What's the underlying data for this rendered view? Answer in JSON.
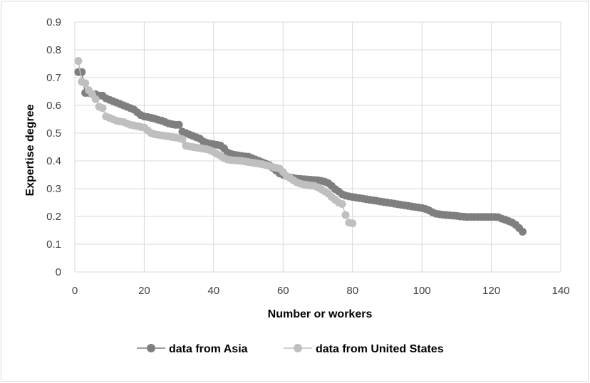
{
  "chart_data": {
    "type": "scatter",
    "xlabel": "Number or workers",
    "ylabel": "Expertise degree",
    "xlim": [
      0,
      140
    ],
    "ylim": [
      0,
      0.9
    ],
    "x_ticks": [
      "0",
      "20",
      "40",
      "60",
      "80",
      "100",
      "120",
      "140"
    ],
    "y_ticks": [
      "0",
      "0.1",
      "0.2",
      "0.3",
      "0.4",
      "0.5",
      "0.6",
      "0.7",
      "0.8",
      "0.9"
    ],
    "grid": true,
    "legend_position": "bottom",
    "series": [
      {
        "name": "data from Asia",
        "color": "#7f7f7f",
        "points": [
          [
            1,
            0.72
          ],
          [
            2,
            0.72
          ],
          [
            3,
            0.645
          ],
          [
            4,
            0.645
          ],
          [
            5,
            0.64
          ],
          [
            6,
            0.64
          ],
          [
            7,
            0.635
          ],
          [
            8,
            0.635
          ],
          [
            9,
            0.625
          ],
          [
            10,
            0.62
          ],
          [
            11,
            0.615
          ],
          [
            12,
            0.61
          ],
          [
            13,
            0.605
          ],
          [
            14,
            0.6
          ],
          [
            15,
            0.595
          ],
          [
            16,
            0.59
          ],
          [
            17,
            0.585
          ],
          [
            18,
            0.575
          ],
          [
            19,
            0.565
          ],
          [
            20,
            0.56
          ],
          [
            21,
            0.558
          ],
          [
            22,
            0.555
          ],
          [
            23,
            0.552
          ],
          [
            24,
            0.548
          ],
          [
            25,
            0.545
          ],
          [
            26,
            0.54
          ],
          [
            27,
            0.535
          ],
          [
            28,
            0.532
          ],
          [
            29,
            0.53
          ],
          [
            30,
            0.53
          ],
          [
            31,
            0.505
          ],
          [
            32,
            0.5
          ],
          [
            33,
            0.495
          ],
          [
            34,
            0.49
          ],
          [
            35,
            0.485
          ],
          [
            36,
            0.48
          ],
          [
            37,
            0.47
          ],
          [
            38,
            0.465
          ],
          [
            39,
            0.462
          ],
          [
            40,
            0.46
          ],
          [
            41,
            0.458
          ],
          [
            42,
            0.455
          ],
          [
            43,
            0.445
          ],
          [
            44,
            0.43
          ],
          [
            45,
            0.425
          ],
          [
            46,
            0.422
          ],
          [
            47,
            0.42
          ],
          [
            48,
            0.418
          ],
          [
            49,
            0.416
          ],
          [
            50,
            0.415
          ],
          [
            51,
            0.41
          ],
          [
            52,
            0.405
          ],
          [
            53,
            0.4
          ],
          [
            54,
            0.395
          ],
          [
            55,
            0.39
          ],
          [
            56,
            0.385
          ],
          [
            57,
            0.375
          ],
          [
            58,
            0.365
          ],
          [
            59,
            0.355
          ],
          [
            60,
            0.35
          ],
          [
            61,
            0.345
          ],
          [
            62,
            0.34
          ],
          [
            63,
            0.338
          ],
          [
            64,
            0.336
          ],
          [
            65,
            0.335
          ],
          [
            66,
            0.334
          ],
          [
            67,
            0.333
          ],
          [
            68,
            0.332
          ],
          [
            69,
            0.331
          ],
          [
            70,
            0.33
          ],
          [
            71,
            0.328
          ],
          [
            72,
            0.325
          ],
          [
            73,
            0.32
          ],
          [
            74,
            0.31
          ],
          [
            75,
            0.298
          ],
          [
            76,
            0.29
          ],
          [
            77,
            0.28
          ],
          [
            78,
            0.275
          ],
          [
            79,
            0.272
          ],
          [
            80,
            0.27
          ],
          [
            81,
            0.268
          ],
          [
            82,
            0.266
          ],
          [
            83,
            0.264
          ],
          [
            84,
            0.262
          ],
          [
            85,
            0.26
          ],
          [
            86,
            0.258
          ],
          [
            87,
            0.256
          ],
          [
            88,
            0.254
          ],
          [
            89,
            0.252
          ],
          [
            90,
            0.25
          ],
          [
            91,
            0.248
          ],
          [
            92,
            0.246
          ],
          [
            93,
            0.244
          ],
          [
            94,
            0.242
          ],
          [
            95,
            0.24
          ],
          [
            96,
            0.238
          ],
          [
            97,
            0.236
          ],
          [
            98,
            0.234
          ],
          [
            99,
            0.232
          ],
          [
            100,
            0.23
          ],
          [
            101,
            0.227
          ],
          [
            102,
            0.222
          ],
          [
            103,
            0.215
          ],
          [
            104,
            0.21
          ],
          [
            105,
            0.208
          ],
          [
            106,
            0.206
          ],
          [
            107,
            0.205
          ],
          [
            108,
            0.204
          ],
          [
            109,
            0.203
          ],
          [
            110,
            0.202
          ],
          [
            111,
            0.2
          ],
          [
            112,
            0.199
          ],
          [
            113,
            0.198
          ],
          [
            114,
            0.198
          ],
          [
            115,
            0.198
          ],
          [
            116,
            0.198
          ],
          [
            117,
            0.198
          ],
          [
            118,
            0.198
          ],
          [
            119,
            0.198
          ],
          [
            120,
            0.198
          ],
          [
            121,
            0.198
          ],
          [
            122,
            0.197
          ],
          [
            123,
            0.192
          ],
          [
            124,
            0.188
          ],
          [
            125,
            0.183
          ],
          [
            126,
            0.178
          ],
          [
            127,
            0.17
          ],
          [
            128,
            0.158
          ],
          [
            129,
            0.145
          ]
        ]
      },
      {
        "name": "data from United States",
        "color": "#bfbfbf",
        "points": [
          [
            1,
            0.76
          ],
          [
            2,
            0.685
          ],
          [
            3,
            0.68
          ],
          [
            4,
            0.655
          ],
          [
            5,
            0.64
          ],
          [
            6,
            0.622
          ],
          [
            7,
            0.595
          ],
          [
            8,
            0.59
          ],
          [
            9,
            0.56
          ],
          [
            10,
            0.555
          ],
          [
            11,
            0.55
          ],
          [
            12,
            0.545
          ],
          [
            13,
            0.542
          ],
          [
            14,
            0.54
          ],
          [
            15,
            0.535
          ],
          [
            16,
            0.53
          ],
          [
            17,
            0.528
          ],
          [
            18,
            0.525
          ],
          [
            19,
            0.522
          ],
          [
            20,
            0.52
          ],
          [
            21,
            0.51
          ],
          [
            22,
            0.5
          ],
          [
            23,
            0.496
          ],
          [
            24,
            0.494
          ],
          [
            25,
            0.492
          ],
          [
            26,
            0.49
          ],
          [
            27,
            0.488
          ],
          [
            28,
            0.486
          ],
          [
            29,
            0.484
          ],
          [
            30,
            0.482
          ],
          [
            31,
            0.478
          ],
          [
            32,
            0.455
          ],
          [
            33,
            0.452
          ],
          [
            34,
            0.45
          ],
          [
            35,
            0.448
          ],
          [
            36,
            0.446
          ],
          [
            37,
            0.444
          ],
          [
            38,
            0.442
          ],
          [
            39,
            0.438
          ],
          [
            40,
            0.432
          ],
          [
            41,
            0.425
          ],
          [
            42,
            0.418
          ],
          [
            43,
            0.41
          ],
          [
            44,
            0.405
          ],
          [
            45,
            0.403
          ],
          [
            46,
            0.402
          ],
          [
            47,
            0.401
          ],
          [
            48,
            0.4
          ],
          [
            49,
            0.398
          ],
          [
            50,
            0.396
          ],
          [
            51,
            0.394
          ],
          [
            52,
            0.392
          ],
          [
            53,
            0.39
          ],
          [
            54,
            0.388
          ],
          [
            55,
            0.385
          ],
          [
            56,
            0.382
          ],
          [
            57,
            0.378
          ],
          [
            58,
            0.375
          ],
          [
            59,
            0.372
          ],
          [
            60,
            0.36
          ],
          [
            61,
            0.345
          ],
          [
            62,
            0.338
          ],
          [
            63,
            0.33
          ],
          [
            64,
            0.322
          ],
          [
            65,
            0.318
          ],
          [
            66,
            0.315
          ],
          [
            67,
            0.313
          ],
          [
            68,
            0.311
          ],
          [
            69,
            0.31
          ],
          [
            70,
            0.305
          ],
          [
            71,
            0.298
          ],
          [
            72,
            0.29
          ],
          [
            73,
            0.282
          ],
          [
            74,
            0.27
          ],
          [
            75,
            0.26
          ],
          [
            76,
            0.25
          ],
          [
            77,
            0.245
          ],
          [
            78,
            0.205
          ],
          [
            79,
            0.178
          ],
          [
            80,
            0.175
          ]
        ]
      }
    ]
  }
}
